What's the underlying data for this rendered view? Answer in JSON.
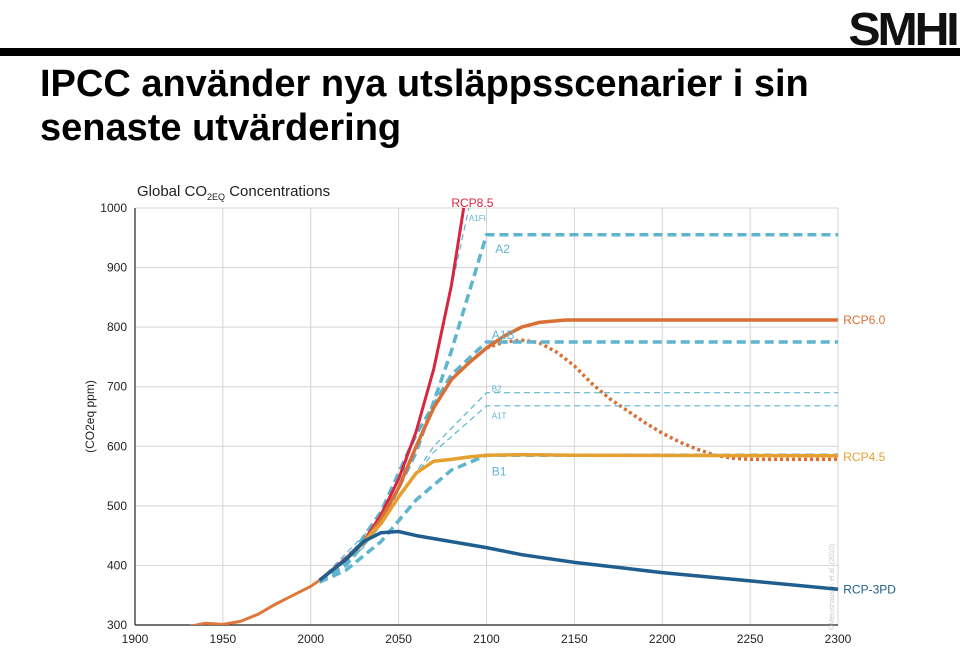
{
  "header": {
    "logo_text": "SMHI",
    "title_line1": "IPCC använder nya utsläppsscenarier i sin",
    "title_line2": "senaste utvärdering"
  },
  "chart_data": {
    "type": "line",
    "title": "Global CO2EQ Concentrations",
    "title_main": "Global CO",
    "title_sub": "2EQ",
    "title_rest": " Concentrations",
    "ylabel": "(CO2eq ppm)",
    "xlim": [
      1900,
      2300
    ],
    "ylim": [
      300,
      1000
    ],
    "x_ticks": [
      1900,
      1950,
      2000,
      2050,
      2100,
      2150,
      2200,
      2250,
      2300
    ],
    "y_ticks": [
      300,
      400,
      500,
      600,
      700,
      800,
      900,
      1000
    ],
    "grid": true,
    "watermark": "©Meinshausen et al. (2010)",
    "historical": {
      "color": "#e0773a",
      "points": [
        [
          1900,
          286
        ],
        [
          1910,
          289
        ],
        [
          1920,
          293
        ],
        [
          1930,
          297
        ],
        [
          1940,
          303
        ],
        [
          1950,
          301
        ],
        [
          1960,
          306
        ],
        [
          1970,
          318
        ],
        [
          1980,
          335
        ],
        [
          1990,
          350
        ],
        [
          2000,
          365
        ],
        [
          2005,
          375
        ]
      ]
    },
    "series": [
      {
        "name": "RCP8.5",
        "color": "#d7263d",
        "style": "solid",
        "width": 3,
        "label_x": 2080,
        "label_y": 1008,
        "points": [
          [
            2005,
            375
          ],
          [
            2020,
            412
          ],
          [
            2030,
            440
          ],
          [
            2040,
            485
          ],
          [
            2050,
            545
          ],
          [
            2060,
            625
          ],
          [
            2070,
            730
          ],
          [
            2080,
            870
          ],
          [
            2087,
            1000
          ]
        ]
      },
      {
        "name": "RCP6.0",
        "color": "#d96f35",
        "style": "solid",
        "width": 3.5,
        "label_x": 2303,
        "label_y": 812,
        "points": [
          [
            2005,
            375
          ],
          [
            2020,
            410
          ],
          [
            2030,
            438
          ],
          [
            2040,
            478
          ],
          [
            2050,
            530
          ],
          [
            2060,
            600
          ],
          [
            2070,
            665
          ],
          [
            2080,
            712
          ],
          [
            2090,
            740
          ],
          [
            2100,
            765
          ],
          [
            2110,
            785
          ],
          [
            2120,
            800
          ],
          [
            2130,
            808
          ],
          [
            2145,
            812
          ],
          [
            2160,
            812
          ],
          [
            2300,
            812
          ]
        ]
      },
      {
        "name": "",
        "color": "#d96f35",
        "style": "dotted",
        "width": 3.5,
        "points": [
          [
            2100,
            765
          ],
          [
            2110,
            775
          ],
          [
            2120,
            778
          ],
          [
            2130,
            774
          ],
          [
            2140,
            758
          ],
          [
            2150,
            735
          ],
          [
            2160,
            705
          ],
          [
            2170,
            680
          ],
          [
            2180,
            660
          ],
          [
            2190,
            640
          ],
          [
            2200,
            622
          ],
          [
            2210,
            607
          ],
          [
            2220,
            595
          ],
          [
            2230,
            585
          ],
          [
            2240,
            580
          ],
          [
            2250,
            578
          ],
          [
            2300,
            578
          ]
        ]
      },
      {
        "name": "RCP4.5",
        "color": "#e5a030",
        "style": "solid",
        "width": 3.5,
        "label_x": 2303,
        "label_y": 582,
        "points": [
          [
            2005,
            375
          ],
          [
            2020,
            410
          ],
          [
            2030,
            440
          ],
          [
            2040,
            470
          ],
          [
            2050,
            515
          ],
          [
            2060,
            555
          ],
          [
            2070,
            575
          ],
          [
            2080,
            578
          ],
          [
            2090,
            582
          ],
          [
            2100,
            585
          ],
          [
            2120,
            586
          ],
          [
            2150,
            585
          ],
          [
            2300,
            584
          ]
        ]
      },
      {
        "name": "RCP-3PD",
        "color": "#1f5e8e",
        "style": "solid",
        "width": 3.5,
        "label_x": 2303,
        "label_y": 360,
        "points": [
          [
            2005,
            375
          ],
          [
            2020,
            410
          ],
          [
            2030,
            440
          ],
          [
            2040,
            455
          ],
          [
            2050,
            457
          ],
          [
            2060,
            450
          ],
          [
            2080,
            440
          ],
          [
            2100,
            430
          ],
          [
            2120,
            418
          ],
          [
            2150,
            405
          ],
          [
            2200,
            388
          ],
          [
            2250,
            374
          ],
          [
            2300,
            360
          ]
        ]
      },
      {
        "name": "A2",
        "color": "#5fb4d0",
        "style": "dashed",
        "width": 3.5,
        "label_x": 2105,
        "label_y": 931,
        "points": [
          [
            2005,
            375
          ],
          [
            2020,
            400
          ],
          [
            2040,
            470
          ],
          [
            2060,
            590
          ],
          [
            2080,
            760
          ],
          [
            2100,
            955
          ],
          [
            2300,
            955
          ]
        ]
      },
      {
        "name": "A1B",
        "color": "#5fb4d0",
        "style": "dashed",
        "width": 3.5,
        "label_x": 2103,
        "label_y": 787,
        "points": [
          [
            2005,
            375
          ],
          [
            2020,
            405
          ],
          [
            2040,
            490
          ],
          [
            2060,
            620
          ],
          [
            2080,
            720
          ],
          [
            2100,
            775
          ],
          [
            2300,
            775
          ]
        ]
      },
      {
        "name": "B1",
        "color": "#5fb4d0",
        "style": "dashed",
        "width": 3.5,
        "label_x": 2103,
        "label_y": 558,
        "points": [
          [
            2005,
            372
          ],
          [
            2020,
            392
          ],
          [
            2040,
            440
          ],
          [
            2060,
            510
          ],
          [
            2080,
            560
          ],
          [
            2100,
            585
          ],
          [
            2300,
            585
          ]
        ]
      },
      {
        "name": "A1FI",
        "color": "#5fb4d0",
        "style": "dashed",
        "width": 1.2,
        "label_x": 2090,
        "label_y": 985,
        "points": [
          [
            2005,
            375
          ],
          [
            2030,
            430
          ],
          [
            2050,
            530
          ],
          [
            2070,
            730
          ],
          [
            2090,
            1000
          ]
        ]
      },
      {
        "name": "B2",
        "color": "#5fb4d0",
        "style": "dashed",
        "width": 1.2,
        "label_x": 2103,
        "label_y": 699,
        "points": [
          [
            2005,
            375
          ],
          [
            2040,
            470
          ],
          [
            2070,
            600
          ],
          [
            2100,
            690
          ],
          [
            2300,
            690
          ]
        ]
      },
      {
        "name": "A1T",
        "color": "#5fb4d0",
        "style": "dashed",
        "width": 1.2,
        "label_x": 2103,
        "label_y": 653,
        "points": [
          [
            2005,
            375
          ],
          [
            2040,
            480
          ],
          [
            2070,
            590
          ],
          [
            2100,
            668
          ],
          [
            2300,
            668
          ]
        ]
      }
    ]
  }
}
